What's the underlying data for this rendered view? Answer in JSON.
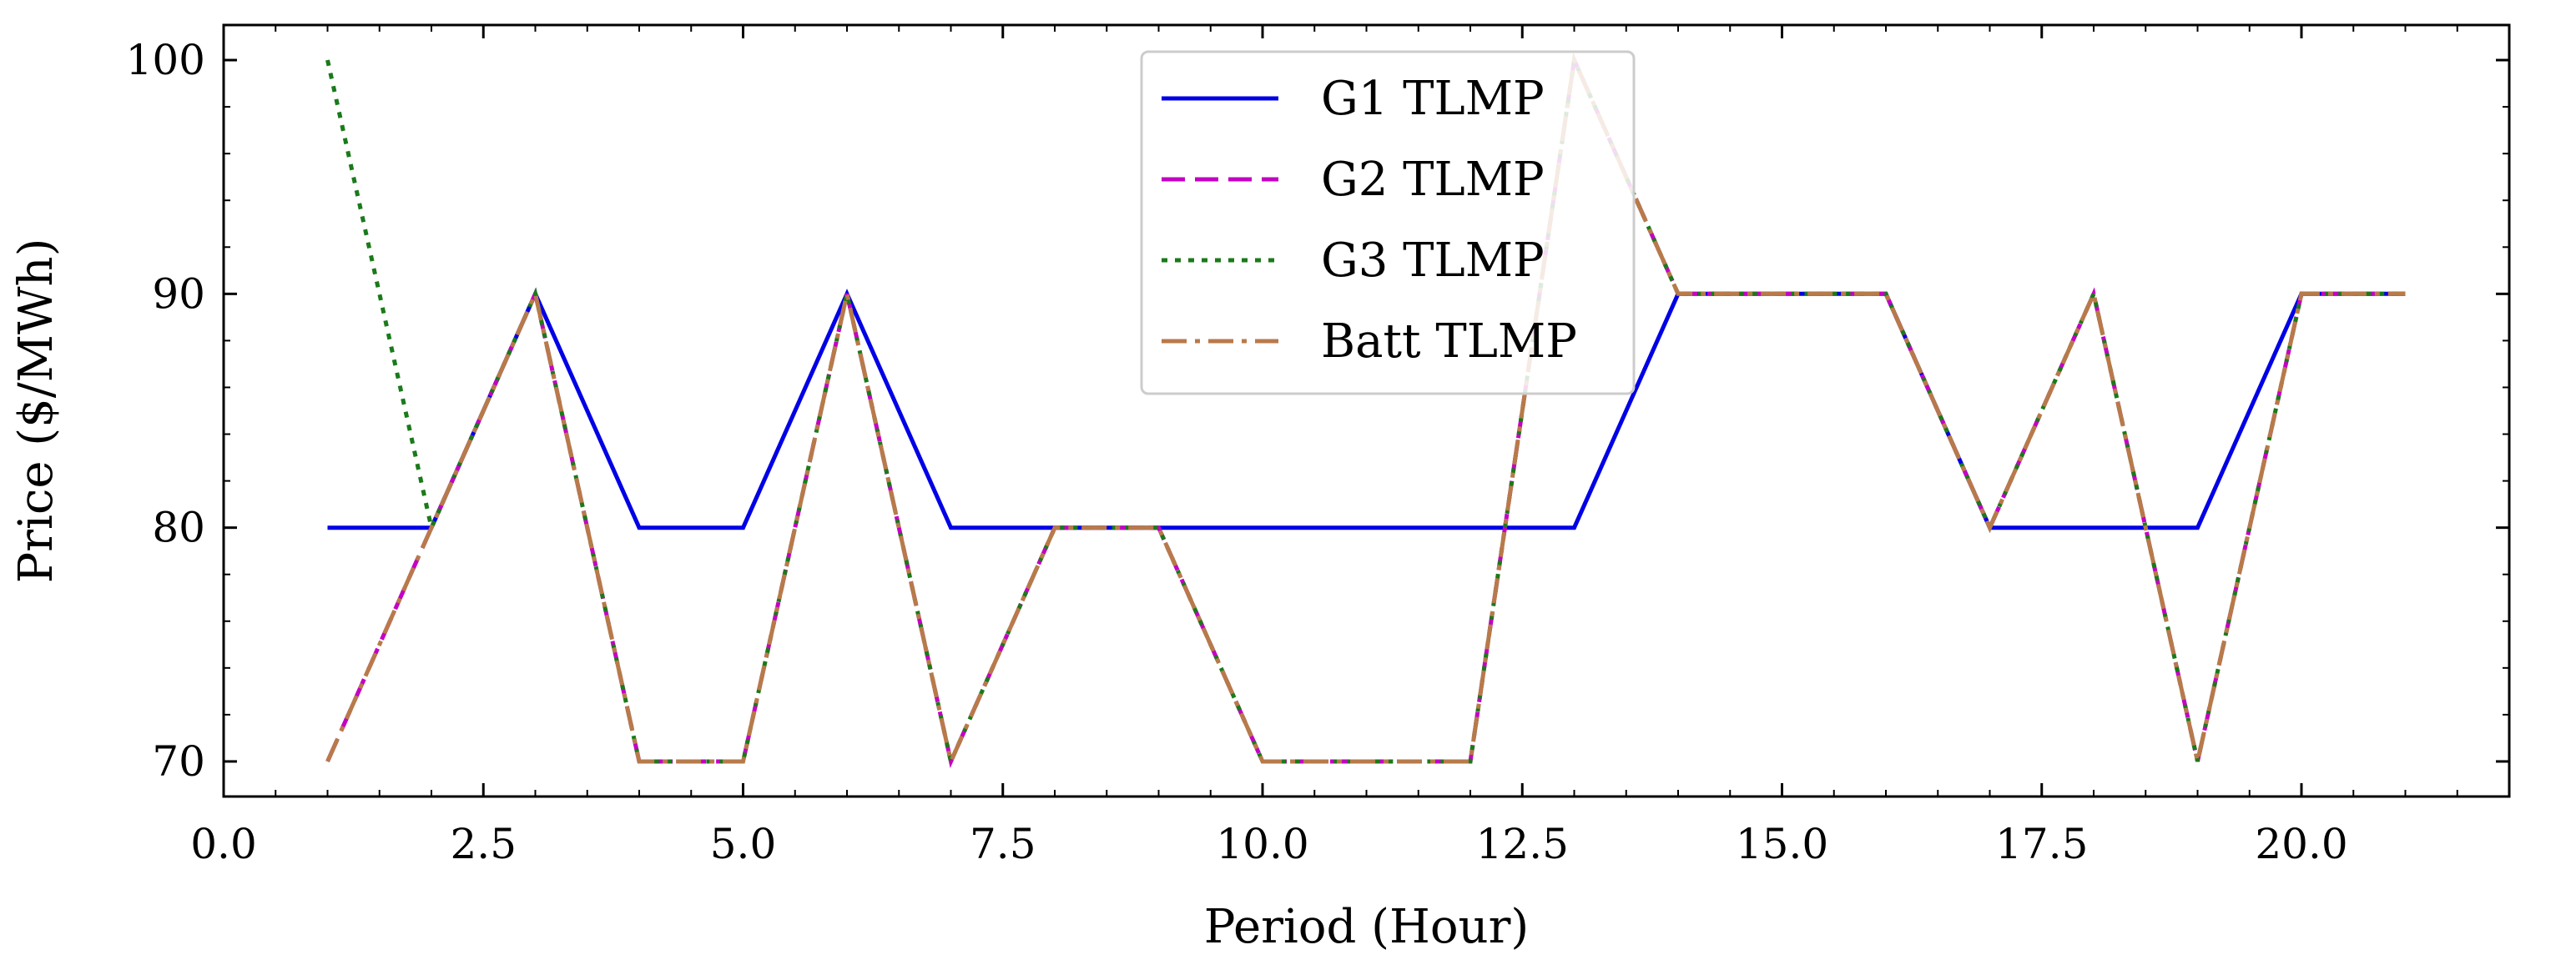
{
  "chart_data": {
    "type": "line",
    "xlabel": "Period (Hour)",
    "ylabel": "Price ($/MWh)",
    "xlim": [
      0.0,
      22.0
    ],
    "ylim": [
      68.5,
      101.5
    ],
    "x_ticks": [
      0.0,
      2.5,
      5.0,
      7.5,
      10.0,
      12.5,
      15.0,
      17.5,
      20.0
    ],
    "x_tick_labels": [
      "0.0",
      "2.5",
      "5.0",
      "7.5",
      "10.0",
      "12.5",
      "15.0",
      "17.5",
      "20.0"
    ],
    "y_ticks": [
      70,
      80,
      90,
      100
    ],
    "y_tick_labels": [
      "70",
      "80",
      "90",
      "100"
    ],
    "grid": false,
    "legend_position": "top-center",
    "x": [
      1,
      2,
      3,
      4,
      5,
      6,
      7,
      8,
      9,
      10,
      11,
      12,
      13,
      14,
      15,
      16,
      17,
      18,
      19,
      20,
      21
    ],
    "series": [
      {
        "name": "G1 TLMP",
        "color": "#0000e6",
        "dash": "solid",
        "values": [
          80,
          80,
          90,
          80,
          80,
          90,
          80,
          80,
          80,
          80,
          80,
          80,
          80,
          90,
          90,
          90,
          80,
          80,
          80,
          90,
          90
        ]
      },
      {
        "name": "G2 TLMP",
        "color": "#c400c4",
        "dash": "dashed",
        "values": [
          70,
          80,
          90,
          70,
          70,
          90,
          70,
          80,
          80,
          70,
          70,
          70,
          100,
          90,
          90,
          90,
          80,
          90,
          70,
          90,
          90
        ]
      },
      {
        "name": "G3 TLMP",
        "color": "#1a7a1a",
        "dash": "dotted",
        "values": [
          100,
          80,
          90,
          70,
          70,
          90,
          70,
          80,
          80,
          70,
          70,
          70,
          100,
          90,
          90,
          90,
          80,
          90,
          70,
          90,
          90
        ]
      },
      {
        "name": "Batt TLMP",
        "color": "#b87a4a",
        "dash": "dashdot",
        "values": [
          70,
          80,
          90,
          70,
          70,
          90,
          70,
          80,
          80,
          70,
          70,
          70,
          100,
          90,
          90,
          90,
          80,
          90,
          70,
          90,
          90
        ]
      }
    ]
  }
}
